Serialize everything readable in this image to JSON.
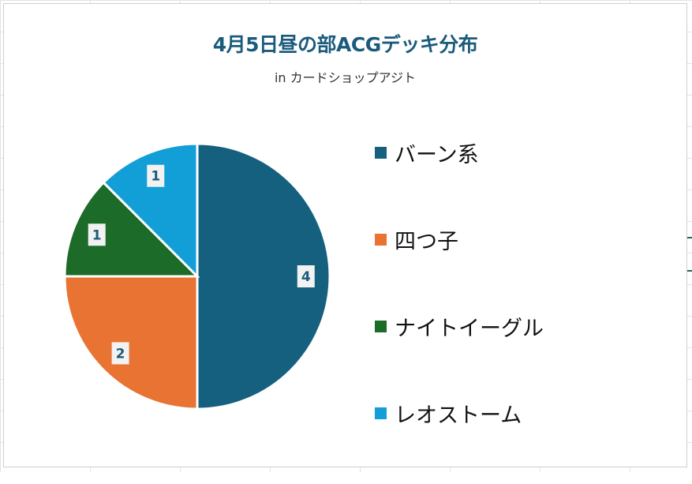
{
  "chart_data": {
    "type": "pie",
    "title": "4月5日昼の部ACGデッキ分布",
    "subtitle": "in カードショップアジト",
    "categories": [
      "バーン系",
      "四つ子",
      "ナイトイーグル",
      "レオストーム"
    ],
    "values": [
      4,
      2,
      1,
      1
    ],
    "colors": [
      "#16607f",
      "#e97333",
      "#1d6b28",
      "#129ed6"
    ],
    "data_labels": [
      "4",
      "2",
      "1",
      "1"
    ],
    "legend_position": "right",
    "start_angle_deg": 0,
    "direction": "clockwise"
  }
}
